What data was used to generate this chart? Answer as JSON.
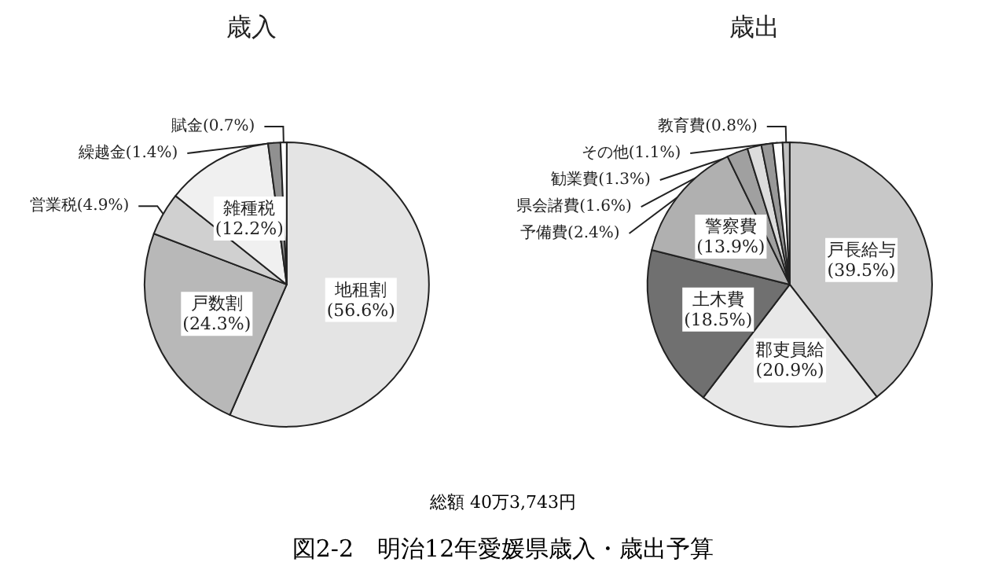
{
  "chart_data": [
    {
      "type": "pie",
      "title": "歳入",
      "categories": [
        "地租割",
        "戸数割",
        "営業税",
        "雑種税",
        "繰越金",
        "賦金"
      ],
      "values": [
        56.6,
        24.3,
        4.9,
        12.2,
        1.4,
        0.7
      ],
      "value_labels": [
        "(56.6%)",
        "(24.3%)",
        "(4.9%)",
        "(12.2%)",
        "(1.4%)",
        "(0.7%)"
      ],
      "colors": [
        "#e4e4e4",
        "#b8b8b8",
        "#d0d0d0",
        "#f0f0f0",
        "#909090",
        "#ffffff"
      ],
      "annotations": [
        "総額 40万3,743円",
        "図2-2　明治12年愛媛県歳入・歳出予算"
      ]
    },
    {
      "type": "pie",
      "title": "歳出",
      "categories": [
        "戸長給与",
        "郡吏員給",
        "土木費",
        "警察費",
        "予備費",
        "県会諸費",
        "勧業費",
        "その他",
        "教育費"
      ],
      "values": [
        39.5,
        20.9,
        18.5,
        13.9,
        2.4,
        1.6,
        1.3,
        1.1,
        0.8
      ],
      "value_labels": [
        "(39.5%)",
        "(20.9%)",
        "(18.5%)",
        "(13.9%)",
        "(2.4%)",
        "(1.6%)",
        "(1.3%)",
        "(1.1%)",
        "(0.8%)"
      ],
      "colors": [
        "#c8c8c8",
        "#e8e8e8",
        "#707070",
        "#b0b0b0",
        "#a0a0a0",
        "#dcdcdc",
        "#989898",
        "#ffffff",
        "#c0c0c0"
      ]
    }
  ]
}
